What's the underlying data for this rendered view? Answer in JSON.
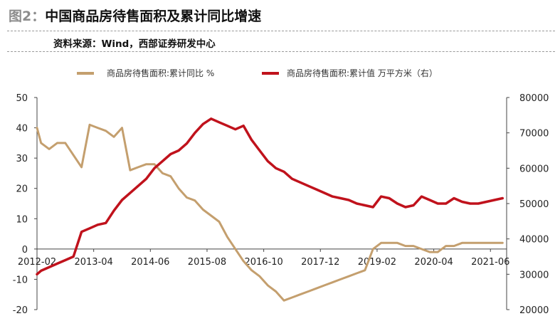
{
  "figure": {
    "label": "图2：",
    "title": "中国商品房待售面积及累计同比增速",
    "source": "资料来源：Wind，西部证券研发中心"
  },
  "colors": {
    "left_series": "#c49f6e",
    "right_series": "#c0121c",
    "axis": "#444444"
  },
  "chart_data": {
    "type": "line",
    "legend_position": "top",
    "grid": false,
    "x_tick_labels": [
      "2012-02",
      "2013-04",
      "2014-06",
      "2015-08",
      "2016-10",
      "2017-12",
      "2019-02",
      "2020-04",
      "2021-06"
    ],
    "left_axis": {
      "ylim": [
        -20,
        50
      ],
      "ticks": [
        "-20",
        "-10",
        "0",
        "10",
        "20",
        "30",
        "40",
        "50"
      ]
    },
    "right_axis": {
      "ylim": [
        20000,
        80000
      ],
      "ticks": [
        "20000",
        "30000",
        "40000",
        "50000",
        "60000",
        "70000",
        "80000"
      ]
    },
    "series": [
      {
        "name": "商品房待售面积:累计同比 %",
        "axis": "left",
        "x": [
          "2012-02",
          "2012-03",
          "2012-05",
          "2012-07",
          "2012-09",
          "2012-11",
          "2013-01",
          "2013-03",
          "2013-05",
          "2013-07",
          "2013-09",
          "2013-11",
          "2014-01",
          "2014-03",
          "2014-05",
          "2014-07",
          "2014-09",
          "2014-11",
          "2015-01",
          "2015-03",
          "2015-05",
          "2015-07",
          "2015-09",
          "2015-11",
          "2016-01",
          "2016-03",
          "2016-05",
          "2016-07",
          "2016-09",
          "2016-11",
          "2017-01",
          "2017-03",
          "2017-05",
          "2017-07",
          "2017-09",
          "2017-11",
          "2018-01",
          "2018-03",
          "2018-05",
          "2018-07",
          "2018-09",
          "2018-11",
          "2019-01",
          "2019-03",
          "2019-05",
          "2019-07",
          "2019-09",
          "2019-11",
          "2020-01",
          "2020-03",
          "2020-05",
          "2020-07",
          "2020-09",
          "2020-11",
          "2021-01",
          "2021-03",
          "2021-05",
          "2021-07",
          "2021-09"
        ],
        "values": [
          40,
          35,
          33,
          35,
          35,
          31,
          27,
          41,
          40,
          39,
          37,
          40,
          26,
          27,
          28,
          28,
          25,
          24,
          20,
          17,
          16,
          13,
          11,
          9,
          4,
          0,
          -4,
          -7,
          -9,
          -12,
          -14,
          -17,
          -16,
          -15,
          -14,
          -13,
          -12,
          -11,
          -10,
          -9,
          -8,
          -7,
          0,
          2,
          2,
          2,
          1,
          1,
          0,
          -1,
          -1,
          1,
          1,
          2,
          2,
          2,
          2,
          2,
          2
        ]
      },
      {
        "name": "商品房待售面积:累计值 万平方米（右）",
        "axis": "right",
        "x": [
          "2012-02",
          "2012-03",
          "2012-05",
          "2012-07",
          "2012-09",
          "2012-11",
          "2013-01",
          "2013-03",
          "2013-05",
          "2013-07",
          "2013-09",
          "2013-11",
          "2014-01",
          "2014-03",
          "2014-05",
          "2014-07",
          "2014-09",
          "2014-11",
          "2015-01",
          "2015-03",
          "2015-05",
          "2015-07",
          "2015-09",
          "2015-11",
          "2016-01",
          "2016-03",
          "2016-05",
          "2016-07",
          "2016-09",
          "2016-11",
          "2017-01",
          "2017-03",
          "2017-05",
          "2017-07",
          "2017-09",
          "2017-11",
          "2018-01",
          "2018-03",
          "2018-05",
          "2018-07",
          "2018-09",
          "2018-11",
          "2019-01",
          "2019-03",
          "2019-05",
          "2019-07",
          "2019-09",
          "2019-11",
          "2020-01",
          "2020-03",
          "2020-05",
          "2020-07",
          "2020-09",
          "2020-11",
          "2021-01",
          "2021-03",
          "2021-05",
          "2021-07",
          "2021-09"
        ],
        "values": [
          30000,
          31000,
          32000,
          33000,
          34000,
          35000,
          42000,
          43000,
          44000,
          44500,
          48000,
          51000,
          53000,
          55000,
          57000,
          60000,
          62000,
          64000,
          65000,
          67000,
          70000,
          72500,
          74000,
          73000,
          72000,
          71000,
          72000,
          68000,
          65000,
          62000,
          60000,
          59000,
          57000,
          56000,
          55000,
          54000,
          53000,
          52000,
          51500,
          51000,
          50000,
          49500,
          49000,
          52000,
          51500,
          50000,
          49000,
          49500,
          52000,
          51000,
          50000,
          50000,
          51500,
          50500,
          50000,
          50000,
          50500,
          51000,
          51500
        ]
      }
    ]
  }
}
